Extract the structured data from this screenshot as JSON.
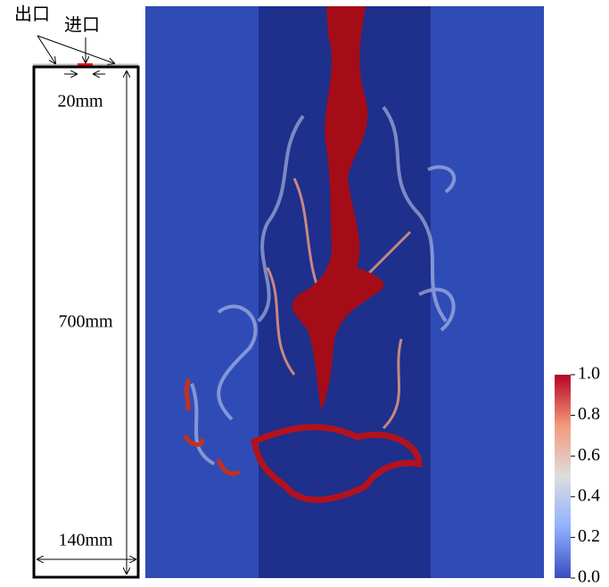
{
  "schematic": {
    "outlet_label": "出口",
    "inlet_label": "进口",
    "inlet_width": "20mm",
    "height": "700mm",
    "width": "140mm"
  },
  "colorbar": {
    "lim": [
      0,
      1
    ],
    "ticks": [
      {
        "value": 0,
        "label": "0.0"
      },
      {
        "value": 0.2,
        "label": "0.2"
      },
      {
        "value": 0.4,
        "label": "0.4"
      },
      {
        "value": 0.6,
        "label": "0.6"
      },
      {
        "value": 0.8,
        "label": "0.8"
      },
      {
        "value": 1,
        "label": "1.0"
      }
    ]
  }
}
